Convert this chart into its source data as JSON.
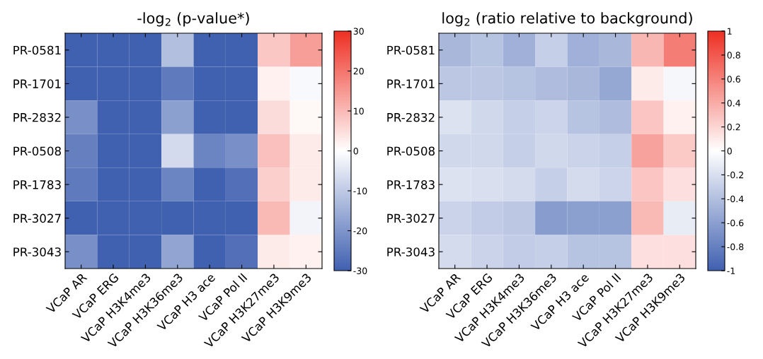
{
  "chart_data": [
    {
      "type": "heatmap",
      "title": "-log$_{2}$ (p-value*)",
      "categories": [
        "VCaP AR",
        "VCaP ERG",
        "VCaP H3K4me3",
        "VCaP H3K36me3",
        "VCaP H3 ace",
        "VCaP Pol II",
        "VCaP H3K27me3",
        "VCaP H3K9me3"
      ],
      "y_categories": [
        "PR-0581",
        "PR-1701",
        "PR-2832",
        "PR-0508",
        "PR-1783",
        "PR-3027",
        "PR-3043"
      ],
      "cells": [
        [
          -30,
          -30,
          -30,
          -12,
          -30,
          -30,
          8,
          14
        ],
        [
          -30,
          -30,
          -30,
          -25,
          -30,
          -30,
          2,
          -1
        ],
        [
          -21,
          -30,
          -30,
          -18,
          -30,
          -30,
          5,
          1
        ],
        [
          -24,
          -30,
          -30,
          -7,
          -23,
          -21,
          9,
          3
        ],
        [
          -25,
          -30,
          -30,
          -23,
          -30,
          -27,
          7,
          3
        ],
        [
          -30,
          -30,
          -30,
          -30,
          -30,
          -30,
          10,
          -2
        ],
        [
          -21,
          -30,
          -30,
          -17,
          -30,
          -27,
          3,
          2
        ]
      ],
      "clim": [
        -30,
        30
      ],
      "cticks": [
        -30,
        -20,
        -10,
        0,
        10,
        20,
        30
      ]
    },
    {
      "type": "heatmap",
      "title": "log$_{2}$ (ratio relative to background)",
      "categories": [
        "VCaP AR",
        "VCaP ERG",
        "VCaP H3K4me3",
        "VCaP H3K36me3",
        "VCaP H3 ace",
        "VCaP Pol II",
        "VCaP H3K27me3",
        "VCaP H3K9me3"
      ],
      "y_categories": [
        "PR-0581",
        "PR-1701",
        "PR-2832",
        "PR-0508",
        "PR-1783",
        "PR-3027",
        "PR-3043"
      ],
      "cells": [
        [
          -0.45,
          -0.38,
          -0.5,
          -0.3,
          -0.5,
          -0.45,
          0.35,
          0.62
        ],
        [
          -0.35,
          -0.35,
          -0.38,
          -0.42,
          -0.45,
          -0.55,
          0.1,
          -0.05
        ],
        [
          -0.18,
          -0.25,
          -0.3,
          -0.27,
          -0.38,
          -0.42,
          0.28,
          0.07
        ],
        [
          -0.25,
          -0.25,
          -0.3,
          -0.25,
          -0.28,
          -0.3,
          0.45,
          0.25
        ],
        [
          -0.18,
          -0.2,
          -0.22,
          -0.3,
          -0.22,
          -0.27,
          0.28,
          0.15
        ],
        [
          -0.28,
          -0.32,
          -0.35,
          -0.62,
          -0.6,
          -0.6,
          0.33,
          -0.12
        ],
        [
          -0.22,
          -0.28,
          -0.32,
          -0.3,
          -0.38,
          -0.38,
          0.15,
          0.15
        ]
      ],
      "clim": [
        -1,
        1
      ],
      "cticks": [
        -1,
        -0.8,
        -0.6,
        -0.4,
        -0.2,
        0,
        0.2,
        0.4,
        0.6,
        0.8,
        1
      ]
    }
  ]
}
